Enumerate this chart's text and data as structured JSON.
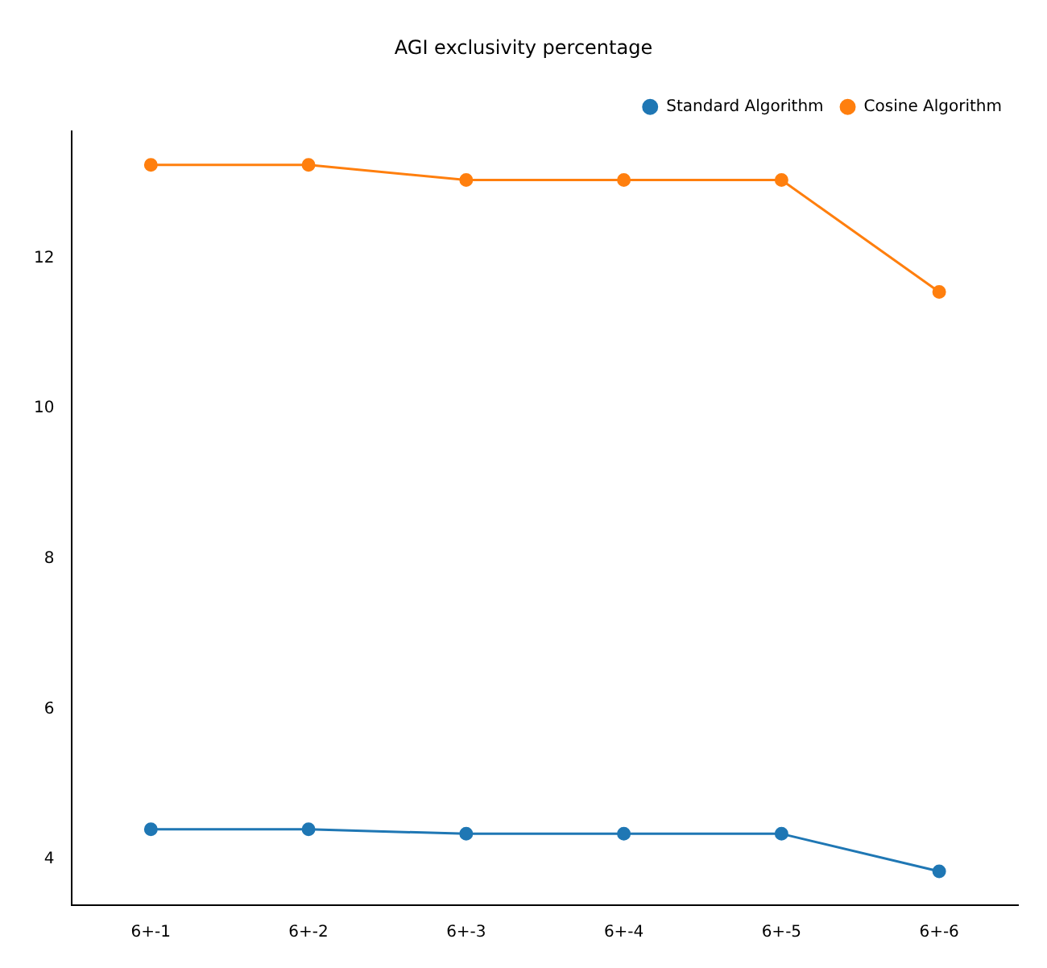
{
  "chart_data": {
    "type": "line",
    "title": "AGI exclusivity percentage",
    "categories": [
      "6+-1",
      "6+-2",
      "6+-3",
      "6+-4",
      "6+-5",
      "6+-6"
    ],
    "series": [
      {
        "name": "Standard Algorithm",
        "color": "#1f77b4",
        "values": [
          4.4,
          4.4,
          4.34,
          4.34,
          4.34,
          3.84
        ]
      },
      {
        "name": "Cosine Algorithm",
        "color": "#ff7f0e",
        "values": [
          13.24,
          13.24,
          13.04,
          13.04,
          13.04,
          11.55
        ]
      }
    ],
    "ylim": [
      3.39,
      13.69
    ],
    "yticks": [
      4,
      6,
      8,
      10,
      12
    ],
    "grid": false,
    "legend": "top right",
    "marker": "circle",
    "line_style": "solid"
  }
}
